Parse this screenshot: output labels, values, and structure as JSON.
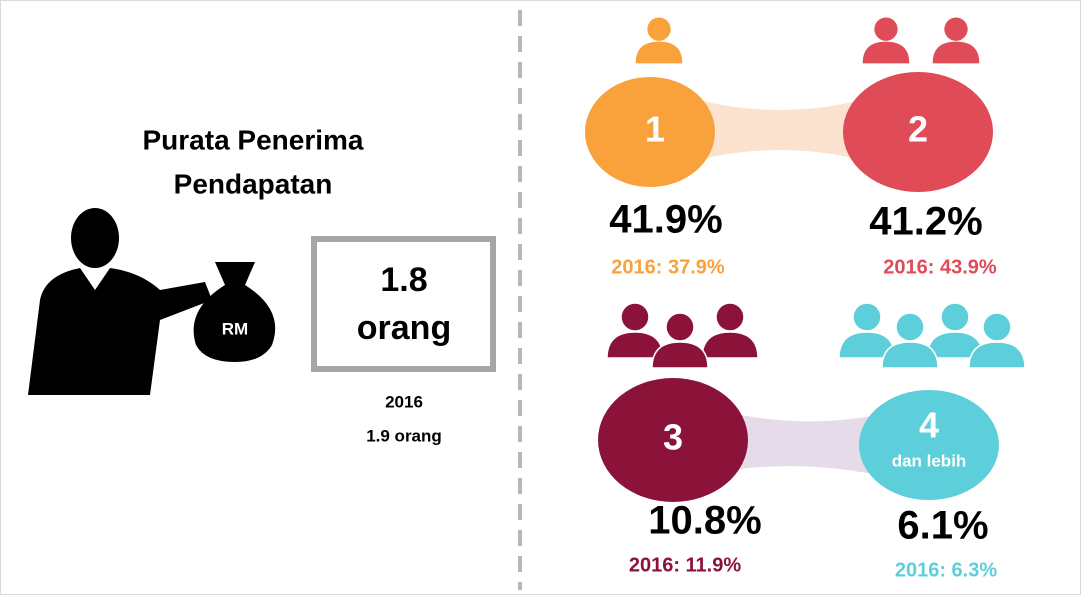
{
  "left": {
    "title_line1": "Purata Penerima",
    "title_line2": "Pendapatan",
    "bag_label": "RM",
    "value": "1.8",
    "unit": "orang",
    "previous_year": "2016",
    "previous_value": "1.9 orang"
  },
  "groups": [
    {
      "number": "1",
      "percent": "41.9%",
      "previous": "2016: 37.9%"
    },
    {
      "number": "2",
      "percent": "41.2%",
      "previous": "2016: 43.9%"
    },
    {
      "number": "3",
      "percent": "10.8%",
      "previous": "2016: 11.9%"
    },
    {
      "number": "4",
      "note": "dan lebih",
      "percent": "6.1%",
      "previous": "2016: 6.3%"
    }
  ]
}
